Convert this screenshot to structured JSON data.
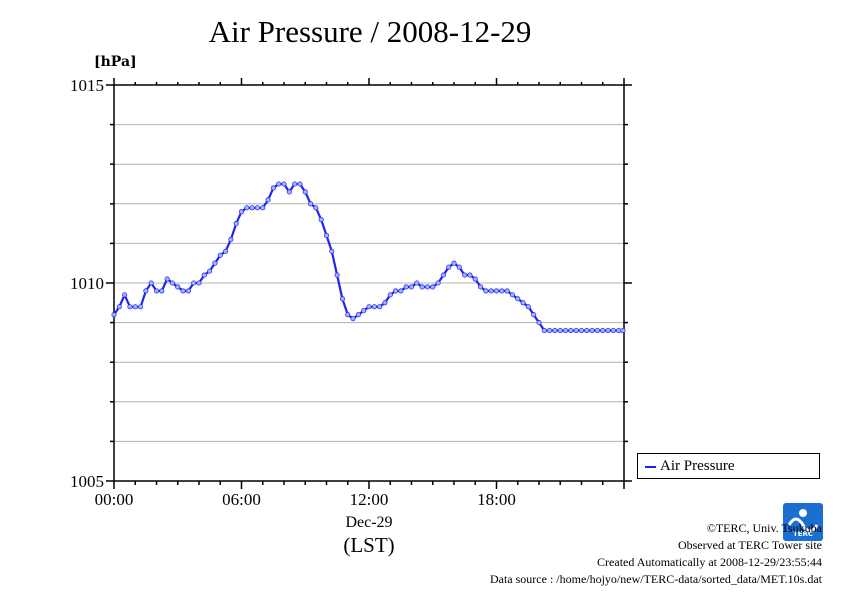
{
  "chart_data": {
    "type": "line",
    "title": "Air Pressure / 2008-12-29",
    "ylabel_unit": "[hPa]",
    "ylim": [
      1005,
      1015
    ],
    "y_ticks": [
      1005,
      1010,
      1015
    ],
    "y_minor_step": 1,
    "xlim_hours": [
      0,
      24
    ],
    "x_tick_labels": [
      "00:00",
      "06:00",
      "12:00",
      "18:00"
    ],
    "x_tick_hours": [
      0,
      6,
      12,
      18
    ],
    "date_label": "Dec-29",
    "xlabel": "(LST)",
    "grid": true,
    "legend_position": "right-bottom",
    "series": [
      {
        "name": "Air Pressure",
        "color": "#2222ee",
        "x_hours": [
          0.0,
          0.25,
          0.5,
          0.75,
          1.0,
          1.25,
          1.5,
          1.75,
          2.0,
          2.25,
          2.5,
          2.75,
          3.0,
          3.25,
          3.5,
          3.75,
          4.0,
          4.25,
          4.5,
          4.75,
          5.0,
          5.25,
          5.5,
          5.75,
          6.0,
          6.25,
          6.5,
          6.75,
          7.0,
          7.25,
          7.5,
          7.75,
          8.0,
          8.25,
          8.5,
          8.75,
          9.0,
          9.25,
          9.5,
          9.75,
          10.0,
          10.25,
          10.5,
          10.75,
          11.0,
          11.25,
          11.5,
          11.75,
          12.0,
          12.25,
          12.5,
          12.75,
          13.0,
          13.25,
          13.5,
          13.75,
          14.0,
          14.25,
          14.5,
          14.75,
          15.0,
          15.25,
          15.5,
          15.75,
          16.0,
          16.25,
          16.5,
          16.75,
          17.0,
          17.25,
          17.5,
          17.75,
          18.0,
          18.25,
          18.5,
          18.75,
          19.0,
          19.25,
          19.5,
          19.75,
          20.0,
          20.25,
          20.5,
          20.75,
          21.0,
          21.25,
          21.5,
          21.75,
          22.0,
          22.25,
          22.5,
          22.75,
          23.0,
          23.25,
          23.5,
          23.75,
          23.95
        ],
        "values": [
          1009.2,
          1009.4,
          1009.7,
          1009.4,
          1009.4,
          1009.4,
          1009.8,
          1010.0,
          1009.8,
          1009.8,
          1010.1,
          1010.0,
          1009.9,
          1009.8,
          1009.8,
          1010.0,
          1010.0,
          1010.2,
          1010.3,
          1010.5,
          1010.7,
          1010.8,
          1011.1,
          1011.5,
          1011.8,
          1011.9,
          1011.9,
          1011.9,
          1011.9,
          1012.1,
          1012.4,
          1012.5,
          1012.5,
          1012.3,
          1012.5,
          1012.5,
          1012.3,
          1012.0,
          1011.9,
          1011.6,
          1011.2,
          1010.8,
          1010.2,
          1009.6,
          1009.2,
          1009.1,
          1009.2,
          1009.3,
          1009.4,
          1009.4,
          1009.4,
          1009.5,
          1009.7,
          1009.8,
          1009.8,
          1009.9,
          1009.9,
          1010.0,
          1009.9,
          1009.9,
          1009.9,
          1010.0,
          1010.2,
          1010.4,
          1010.5,
          1010.4,
          1010.2,
          1010.2,
          1010.1,
          1009.9,
          1009.8,
          1009.8,
          1009.8,
          1009.8,
          1009.8,
          1009.7,
          1009.6,
          1009.5,
          1009.4,
          1009.2,
          1009.0,
          1008.8,
          1008.8,
          1008.8,
          1008.8,
          1008.8,
          1008.8,
          1008.8,
          1008.8,
          1008.8,
          1008.8,
          1008.8,
          1008.8,
          1008.8,
          1008.8,
          1008.8,
          1008.8
        ]
      }
    ]
  },
  "credits": {
    "copyright": "©TERC, Univ. Tsukuba",
    "observed": "Observed at TERC Tower site",
    "created": "Created Automatically at 2008-12-29/23:55:44",
    "source": "Data source : /home/hojyo/new/TERC-data/sorted_data/MET.10s.dat"
  },
  "logo": {
    "text": "TERC",
    "color": "#1a6fd1"
  }
}
